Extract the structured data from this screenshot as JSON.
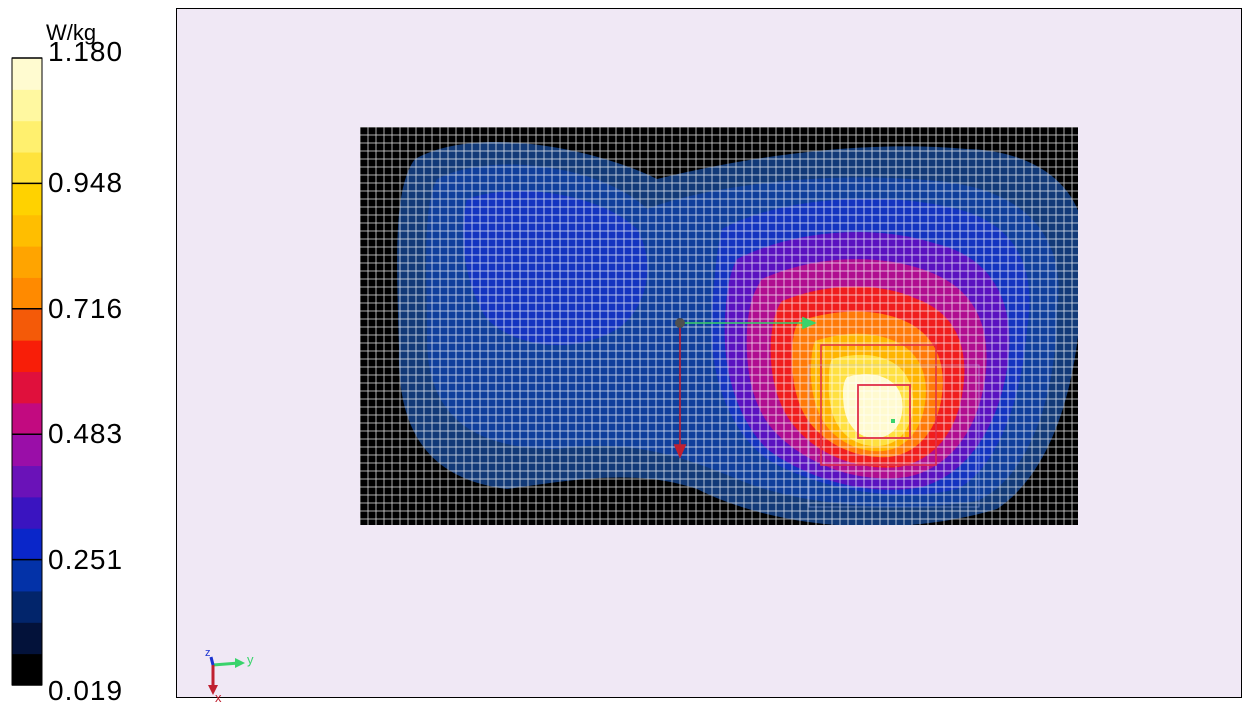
{
  "colorbar": {
    "unit": "W/kg",
    "ticks": [
      "1.180",
      "0.948",
      "0.716",
      "0.483",
      "0.251",
      "0.019"
    ],
    "bands": [
      "#000000",
      "#03123a",
      "#02256b",
      "#0332a8",
      "#0a26c9",
      "#3a14c0",
      "#6a12b8",
      "#9a0ea8",
      "#c20a80",
      "#e0103c",
      "#f81e08",
      "#f45a08",
      "#ff8a00",
      "#ffa400",
      "#ffbe00",
      "#ffd200",
      "#ffe33c",
      "#fff06e",
      "#fff8a0",
      "#fffbd0"
    ]
  },
  "chart_data": {
    "type": "heatmap",
    "title": "",
    "colorbar_label": "W/kg",
    "value_range": [
      0.019,
      1.18
    ],
    "colorbar_ticks": [
      1.18,
      0.948,
      0.716,
      0.483,
      0.251,
      0.019
    ],
    "peak_value_approx": 1.18,
    "grid": true,
    "background_color": "#f0e8f5",
    "mesh_color": "#ffffff",
    "legend_position": "left"
  },
  "triad": {
    "y_label": "y",
    "x_label": "x",
    "z_label": "z"
  }
}
